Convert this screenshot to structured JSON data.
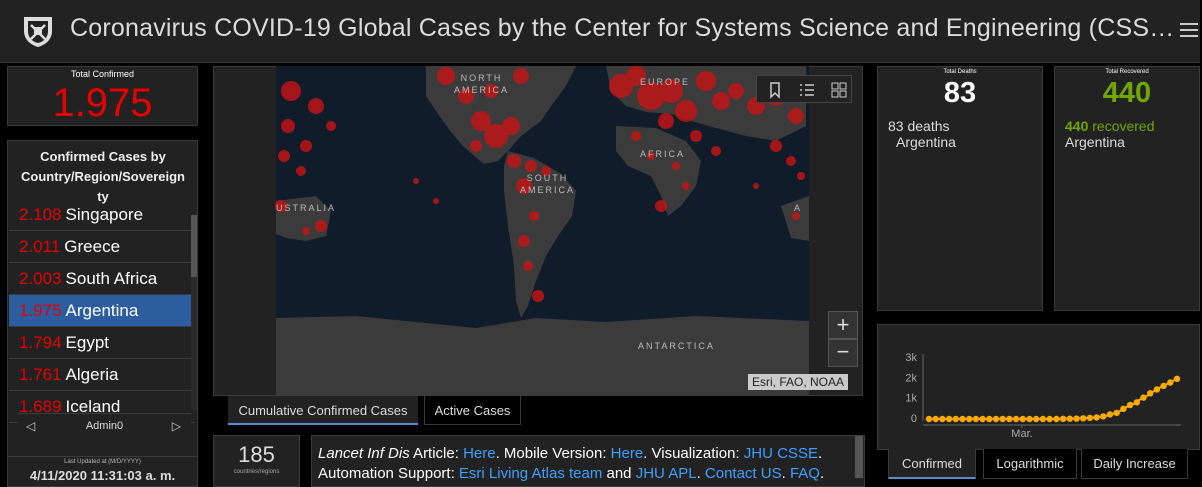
{
  "header": {
    "title": "Coronavirus COVID-19 Global Cases by the Center for Systems Science and Engineering (CSS…"
  },
  "total_confirmed": {
    "label": "Total Confirmed",
    "value": "1.975"
  },
  "confirmed_list": {
    "title": "Confirmed Cases by Country/Region/Sovereignty",
    "title_lines": [
      "Confirmed Cases by",
      "Country/Region/Sovereign",
      "ty"
    ],
    "rows": [
      {
        "value": "2.108",
        "name": "Singapore"
      },
      {
        "value": "2.011",
        "name": "Greece"
      },
      {
        "value": "2.003",
        "name": "South Africa"
      },
      {
        "value": "1.975",
        "name": "Argentina",
        "selected": true
      },
      {
        "value": "1.794",
        "name": "Egypt"
      },
      {
        "value": "1.761",
        "name": "Algeria"
      },
      {
        "value": "1.689",
        "name": "Iceland"
      }
    ],
    "nav_label": "Admin0"
  },
  "last_updated": {
    "label": "Last Updated at (M/D/YYYY)",
    "value": "4/11/2020 11:31:03 a. m."
  },
  "map": {
    "labels": {
      "north_america": [
        "NORTH",
        "AMERICA"
      ],
      "europe": "EUROPE",
      "africa": "AFRICA",
      "south_america": [
        "SOUTH",
        "AMERICA"
      ],
      "australia": "USTRALIA",
      "antarctica": "ANTARCTICA",
      "edge_a": "A"
    },
    "attribution": "Esri, FAO, NOAA",
    "zoom_in": "+",
    "zoom_out": "−",
    "tabs": [
      "Cumulative Confirmed Cases",
      "Active Cases"
    ]
  },
  "countries_count": {
    "value": "185",
    "label": "countries/regions"
  },
  "info": {
    "lancet": "Lancet Inf Dis",
    "article_text": " Article: ",
    "here1": "Here",
    "mobile_text": ". Mobile Version: ",
    "here2": "Here",
    "vis_text": ". Visualization: ",
    "jhu_csse": "JHU CSSE",
    "end1": ".",
    "automation_text": "Automation Support: ",
    "esri_team": "Esri Living Atlas team",
    "and_text": " and ",
    "jhu_apl": "JHU APL",
    "dot_text": ". ",
    "contact": "Contact US",
    "dot2": ". ",
    "faq": "FAQ",
    "end2": "."
  },
  "deaths": {
    "label": "Total Deaths",
    "value": "83",
    "line_value": "83",
    "line_suffix": " deaths",
    "country": "Argentina"
  },
  "recovered": {
    "label": "Total Recovered",
    "value": "440",
    "line_value": "440",
    "line_suffix": " recovered",
    "country": "Argentina"
  },
  "chart_tabs": [
    "Confirmed",
    "Logarithmic",
    "Daily Increase"
  ],
  "colors": {
    "confirmed_red": "#e60000",
    "recovered_green": "#70a800",
    "link_blue": "#3ea0ff",
    "selected_row": "#2b5d9f",
    "chart_line": "#ffaa00"
  },
  "chart_data": {
    "type": "line",
    "title": "",
    "xlabel": "",
    "ylabel": "",
    "x_tick_labels": [
      "Mar."
    ],
    "y_tick_labels": [
      "0",
      "1k",
      "2k",
      "3k"
    ],
    "ylim": [
      0,
      3000
    ],
    "series": [
      {
        "values": [
          0,
          0,
          0,
          0,
          0,
          0,
          0,
          0,
          0,
          0,
          0,
          0,
          0,
          0,
          0,
          0,
          0,
          0,
          0,
          0,
          0,
          0,
          0,
          0,
          0,
          0,
          0,
          0,
          0,
          0,
          0,
          0,
          0,
          0,
          0,
          1,
          1,
          1,
          2,
          2,
          8,
          12,
          17,
          19,
          21,
          31,
          34,
          45,
          56,
          65,
          79,
          97,
          128,
          158,
          225,
          266,
          301,
          387,
          502,
          589,
          690,
          745,
          820,
          966,
          1054,
          1133,
          1265,
          1353,
          1451,
          1554,
          1628,
          1715,
          1795,
          1894,
          1975
        ]
      }
    ],
    "grid": false,
    "legend": "none"
  }
}
